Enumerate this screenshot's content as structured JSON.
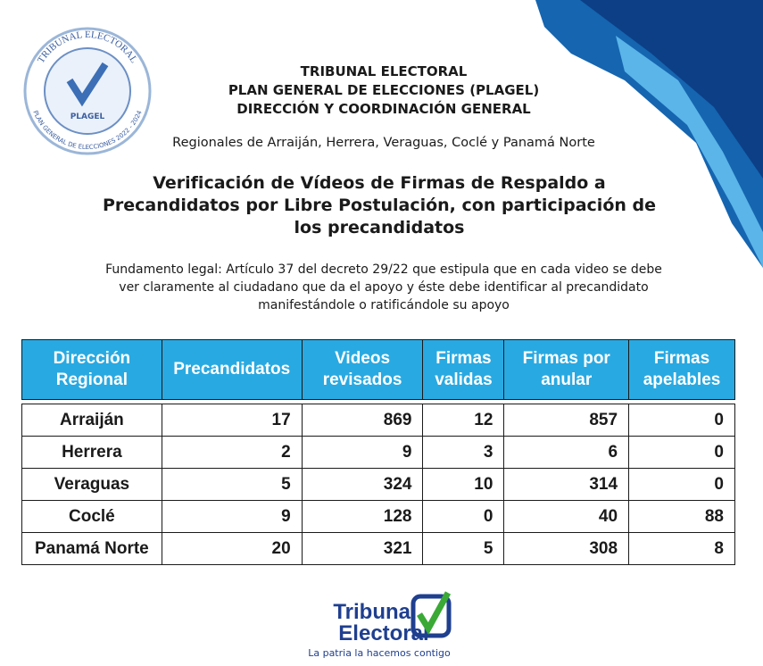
{
  "header": {
    "org_lines": [
      "TRIBUNAL ELECTORAL",
      "PLAN GENERAL DE ELECCIONES (PLAGEL)",
      "DIRECCIÓN Y COORDINACIÓN GENERAL"
    ],
    "regions": "Regionales de Arraiján, Herrera, Veraguas, Coclé y Panamá Norte",
    "title_lines": [
      "Verificación de Vídeos de Firmas de Respaldo a",
      "Precandidatos por Libre Postulación, con participación de",
      "los precandidatos"
    ],
    "legal_lines": [
      "Fundamento legal: Artículo 37 del decreto 29/22 que estipula que en cada video se debe",
      "ver claramente al ciudadano que da el apoyo y éste debe identificar al precandidato",
      "manifestándole o ratificándole su apoyo"
    ]
  },
  "seal": {
    "top": "TRIBUNAL ELECTORAL",
    "center": "PLAGEL",
    "bottom": "PLAN GENERAL DE ELECCIONES 2022 - 2024"
  },
  "table": {
    "headers": [
      "Dirección Regional",
      "Precandidatos",
      "Videos revisados",
      "Firmas validas",
      "Firmas por anular",
      "Firmas apelables"
    ],
    "rows": [
      [
        "Arraiján",
        "17",
        "869",
        "12",
        "857",
        "0"
      ],
      [
        "Herrera",
        "2",
        "9",
        "3",
        "6",
        "0"
      ],
      [
        "Veraguas",
        "5",
        "324",
        "10",
        "314",
        "0"
      ],
      [
        "Coclé",
        "9",
        "128",
        "0",
        "40",
        "88"
      ],
      [
        "Panamá Norte",
        "20",
        "321",
        "5",
        "308",
        "8"
      ]
    ]
  },
  "footer": {
    "logo_line1": "Tribunal",
    "logo_line2": "Electoral",
    "slogan": "La patria la hacemos contigo"
  }
}
